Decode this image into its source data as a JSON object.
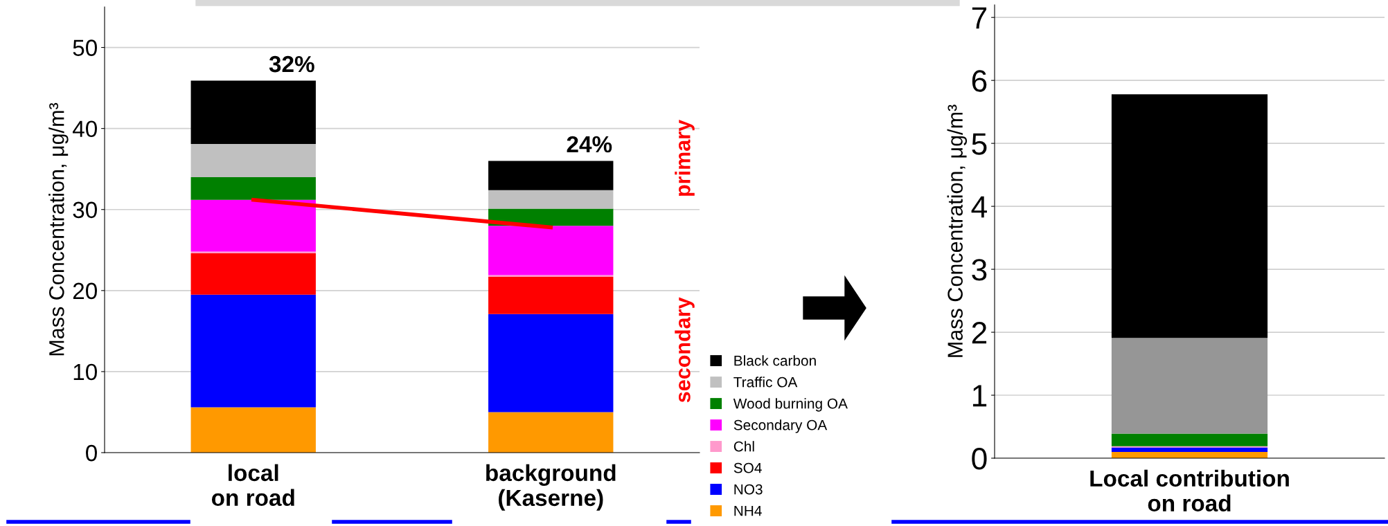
{
  "chart_data": [
    {
      "type": "bar",
      "stacked": true,
      "ylabel": "Mass Concentration, μg/m³",
      "categories": [
        "local\non road",
        "background\n(Kaserne)"
      ],
      "ylim": [
        0,
        55
      ],
      "yticks": [
        0,
        10,
        20,
        30,
        40,
        50
      ],
      "grid": "y",
      "legend": "bottom right",
      "series": [
        {
          "name": "NH4",
          "color": "#ff9900",
          "values": [
            5.6,
            5.0
          ]
        },
        {
          "name": "NO3",
          "color": "#0000ff",
          "values": [
            13.9,
            12.1
          ]
        },
        {
          "name": "SO4",
          "color": "#ff0000",
          "values": [
            5.1,
            4.6
          ]
        },
        {
          "name": "Chl",
          "color": "#ff99cc",
          "values": [
            0.2,
            0.2
          ]
        },
        {
          "name": "Secondary OA",
          "color": "#ff00ff",
          "values": [
            6.4,
            6.1
          ]
        },
        {
          "name": "Wood burning OA",
          "color": "#008000",
          "values": [
            2.8,
            2.1
          ]
        },
        {
          "name": "Traffic OA",
          "color": "#c0c0c0",
          "values": [
            4.1,
            2.3
          ]
        },
        {
          "name": "Black carbon",
          "color": "#000000",
          "values": [
            7.8,
            3.6
          ]
        },
        {
          "type": "line",
          "color": "#ff0000",
          "values": [
            31.2,
            27.8
          ]
        }
      ],
      "annotations": [
        {
          "text": "32%",
          "x": "local\non road",
          "y": 45.9
        },
        {
          "text": "24%",
          "x": "background\n(Kaserne)",
          "y": 36.0
        },
        "primary",
        "secondary"
      ]
    },
    {
      "type": "bar",
      "stacked": true,
      "ylabel": "Mass Concentration, μg/m³",
      "categories": [
        "Local contribution\non road"
      ],
      "ylim": [
        0,
        7.2
      ],
      "yticks": [
        0,
        1,
        2,
        3,
        4,
        5,
        6,
        7
      ],
      "grid": "y",
      "series": [
        {
          "color": "#ff9900",
          "values": [
            0.1
          ]
        },
        {
          "color": "#0000ff",
          "values": [
            0.07
          ]
        },
        {
          "color": "#ff99cc",
          "values": [
            0.02
          ]
        },
        {
          "color": "#008000",
          "values": [
            0.2
          ]
        },
        {
          "color": "#969696",
          "values": [
            1.52
          ]
        },
        {
          "color": "#000000",
          "values": [
            3.87
          ]
        }
      ]
    }
  ]
}
